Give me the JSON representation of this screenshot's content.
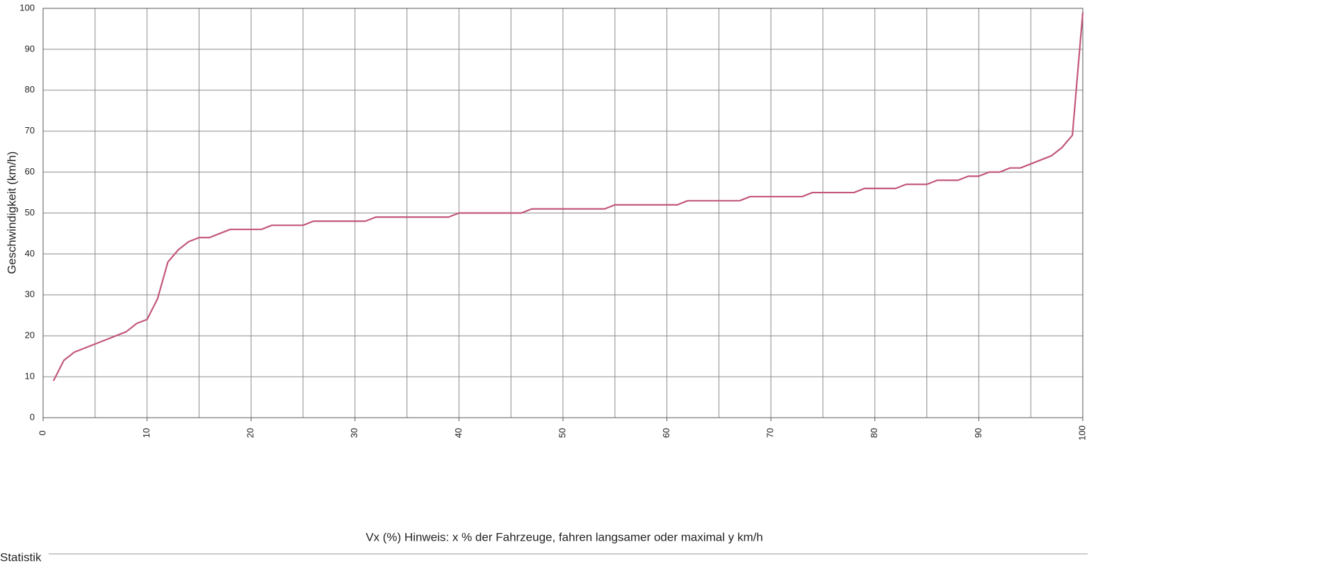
{
  "chart_data": {
    "type": "line",
    "xlabel": "Vx (%) Hinweis: x % der Fahrzeuge, fahren langsamer oder maximal y km/h",
    "ylabel": "Geschwindigkeit (km/h)",
    "section_label": "Statistik",
    "xlim": [
      0,
      100
    ],
    "ylim": [
      0,
      100
    ],
    "xticks": [
      0,
      10,
      20,
      30,
      40,
      50,
      60,
      70,
      80,
      90,
      100
    ],
    "xgrid": [
      0,
      5,
      10,
      15,
      20,
      25,
      30,
      35,
      40,
      45,
      50,
      55,
      60,
      65,
      70,
      75,
      80,
      85,
      90,
      95,
      100
    ],
    "yticks": [
      0,
      10,
      20,
      30,
      40,
      50,
      60,
      70,
      80,
      90,
      100
    ],
    "grid": true,
    "x": [
      1,
      2,
      3,
      4,
      5,
      6,
      7,
      8,
      9,
      10,
      11,
      12,
      13,
      14,
      15,
      16,
      17,
      18,
      19,
      20,
      21,
      22,
      23,
      24,
      25,
      26,
      27,
      28,
      29,
      30,
      31,
      32,
      33,
      34,
      35,
      36,
      37,
      38,
      39,
      40,
      41,
      42,
      43,
      44,
      45,
      46,
      47,
      48,
      49,
      50,
      51,
      52,
      53,
      54,
      55,
      56,
      57,
      58,
      59,
      60,
      61,
      62,
      63,
      64,
      65,
      66,
      67,
      68,
      69,
      70,
      71,
      72,
      73,
      74,
      75,
      76,
      77,
      78,
      79,
      80,
      81,
      82,
      83,
      84,
      85,
      86,
      87,
      88,
      89,
      90,
      91,
      92,
      93,
      94,
      95,
      96,
      97,
      98,
      99,
      100
    ],
    "series": [
      {
        "color": "#c2567c",
        "values": [
          9,
          14,
          16,
          17,
          18,
          19,
          20,
          21,
          23,
          24,
          29,
          38,
          41,
          43,
          44,
          44,
          45,
          46,
          46,
          46,
          46,
          47,
          47,
          47,
          47,
          48,
          48,
          48,
          48,
          48,
          48,
          49,
          49,
          49,
          49,
          49,
          49,
          49,
          49,
          50,
          50,
          50,
          50,
          50,
          50,
          50,
          51,
          51,
          51,
          51,
          51,
          51,
          51,
          51,
          52,
          52,
          52,
          52,
          52,
          52,
          52,
          53,
          53,
          53,
          53,
          53,
          53,
          54,
          54,
          54,
          54,
          54,
          54,
          55,
          55,
          55,
          55,
          55,
          56,
          56,
          56,
          56,
          57,
          57,
          57,
          58,
          58,
          58,
          59,
          59,
          60,
          60,
          61,
          61,
          62,
          63,
          64,
          66,
          69,
          99
        ]
      }
    ]
  }
}
